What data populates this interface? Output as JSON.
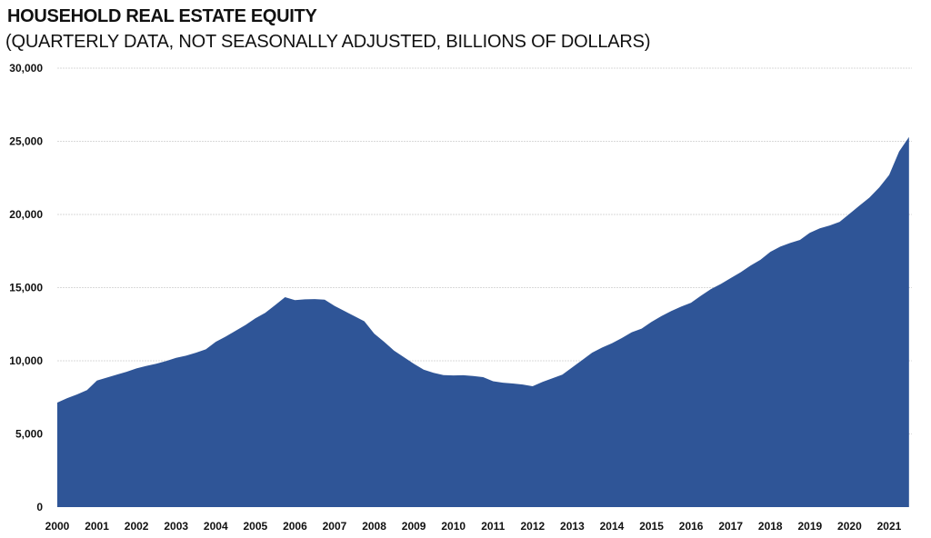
{
  "chart_data": {
    "type": "area",
    "title": "HOUSEHOLD REAL ESTATE EQUITY",
    "subtitle": "(QUARTERLY DATA, NOT SEASONALLY ADJUSTED, BILLIONS OF DOLLARS)",
    "xlabel": "",
    "ylabel": "",
    "ylim": [
      0,
      30000
    ],
    "y_ticks": [
      "0",
      "5,000",
      "10,000",
      "15,000",
      "20,000",
      "25,000",
      "30,000"
    ],
    "x_ticks": [
      "2000",
      "2001",
      "2002",
      "2003",
      "2004",
      "2005",
      "2006",
      "2007",
      "2008",
      "2009",
      "2010",
      "2011",
      "2012",
      "2013",
      "2014",
      "2015",
      "2016",
      "2017",
      "2018",
      "2019",
      "2020",
      "2021"
    ],
    "grid": true,
    "fill_color": "#2F5597",
    "x_start": "2000 Q1",
    "x_end": "2021 Q3",
    "values": [
      7140,
      7450,
      7700,
      8000,
      8650,
      8850,
      9050,
      9250,
      9480,
      9650,
      9800,
      9980,
      10200,
      10350,
      10550,
      10780,
      11300,
      11650,
      12050,
      12450,
      12900,
      13280,
      13800,
      14350,
      14150,
      14200,
      14220,
      14180,
      13750,
      13400,
      13050,
      12700,
      11860,
      11300,
      10700,
      10250,
      9800,
      9400,
      9180,
      9020,
      9000,
      9010,
      8960,
      8880,
      8600,
      8500,
      8450,
      8380,
      8260,
      8550,
      8800,
      9050,
      9550,
      10050,
      10550,
      10900,
      11200,
      11550,
      11950,
      12200,
      12650,
      13050,
      13400,
      13700,
      13970,
      14450,
      14900,
      15250,
      15650,
      16050,
      16500,
      16900,
      17450,
      17800,
      18050,
      18260,
      18750,
      19050,
      19250,
      19500,
      20050,
      20600,
      21150,
      21850,
      22700,
      24300,
      25300
    ]
  }
}
